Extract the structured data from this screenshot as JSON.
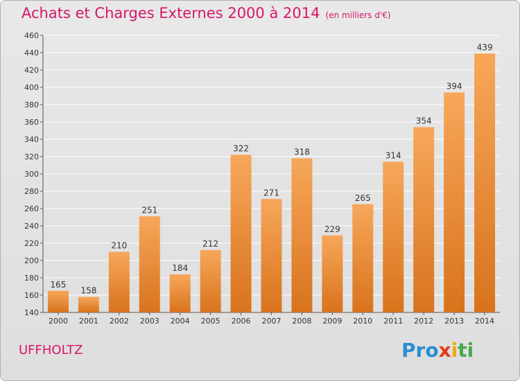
{
  "title": "Achats et Charges Externes 2000 à 2014",
  "subtitle": "(en milliers d'€)",
  "city": "UFFHOLTZ",
  "logo": {
    "letters": [
      {
        "ch": "P",
        "color": "#2a8fd0"
      },
      {
        "ch": "r",
        "color": "#2a8fd0"
      },
      {
        "ch": "o",
        "color": "#2a8fd0"
      },
      {
        "ch": "x",
        "color": "#e03a1e"
      },
      {
        "ch": "i",
        "color": "#f2a700"
      },
      {
        "ch": "t",
        "color": "#46a84a"
      },
      {
        "ch": "i",
        "color": "#46a84a"
      }
    ]
  },
  "colors": {
    "bar_top": "#f7a75a",
    "bar_bottom": "#d8731d",
    "accent": "#d6166b"
  },
  "chart_data": {
    "type": "bar",
    "categories": [
      "2000",
      "2001",
      "2002",
      "2003",
      "2004",
      "2005",
      "2006",
      "2007",
      "2008",
      "2009",
      "2010",
      "2011",
      "2012",
      "2013",
      "2014"
    ],
    "values": [
      165,
      158,
      210,
      251,
      184,
      212,
      322,
      271,
      318,
      229,
      265,
      314,
      354,
      394,
      439
    ],
    "ylim": [
      140,
      460
    ],
    "yticks": [
      140,
      160,
      180,
      200,
      220,
      240,
      260,
      280,
      300,
      320,
      340,
      360,
      380,
      400,
      420,
      440,
      460
    ],
    "grid": true,
    "xlabel": "",
    "ylabel": ""
  }
}
